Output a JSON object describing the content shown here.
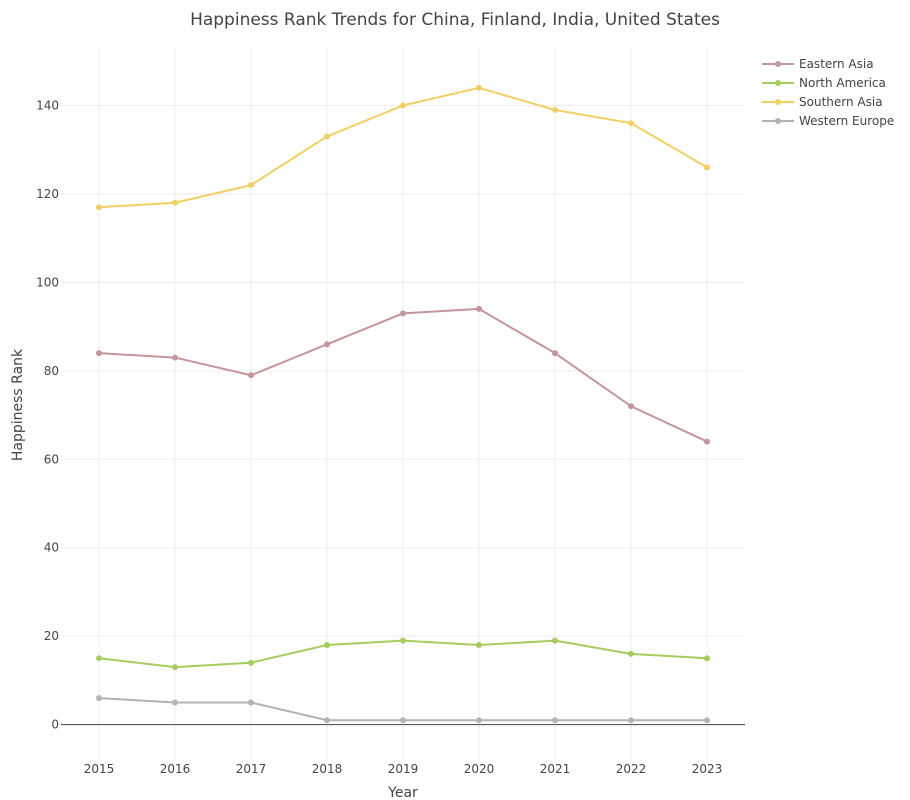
{
  "chart_data": {
    "type": "line",
    "title": "Happiness Rank Trends for China, Finland, India, United States",
    "xlabel": "Year",
    "ylabel": "Happiness Rank",
    "x": [
      2015,
      2016,
      2017,
      2018,
      2019,
      2020,
      2021,
      2022,
      2023
    ],
    "xlim": [
      2014.5,
      2023.5
    ],
    "ylim": [
      -8,
      153
    ],
    "yticks": [
      0,
      20,
      40,
      60,
      80,
      100,
      120,
      140
    ],
    "grid": true,
    "legend_position": "top-right",
    "series": [
      {
        "name": "Eastern Asia",
        "color": "#c4959b",
        "values": [
          84,
          83,
          79,
          86,
          93,
          94,
          84,
          72,
          64
        ]
      },
      {
        "name": "North America",
        "color": "#a6cc5e",
        "values": [
          15,
          13,
          14,
          18,
          19,
          18,
          19,
          16,
          15
        ]
      },
      {
        "name": "Southern Asia",
        "color": "#f0d063",
        "values": [
          117,
          118,
          122,
          133,
          140,
          144,
          139,
          136,
          126
        ]
      },
      {
        "name": "Western Europe",
        "color": "#b3b3b3",
        "values": [
          6,
          5,
          5,
          1,
          1,
          1,
          1,
          1,
          1
        ]
      }
    ]
  }
}
